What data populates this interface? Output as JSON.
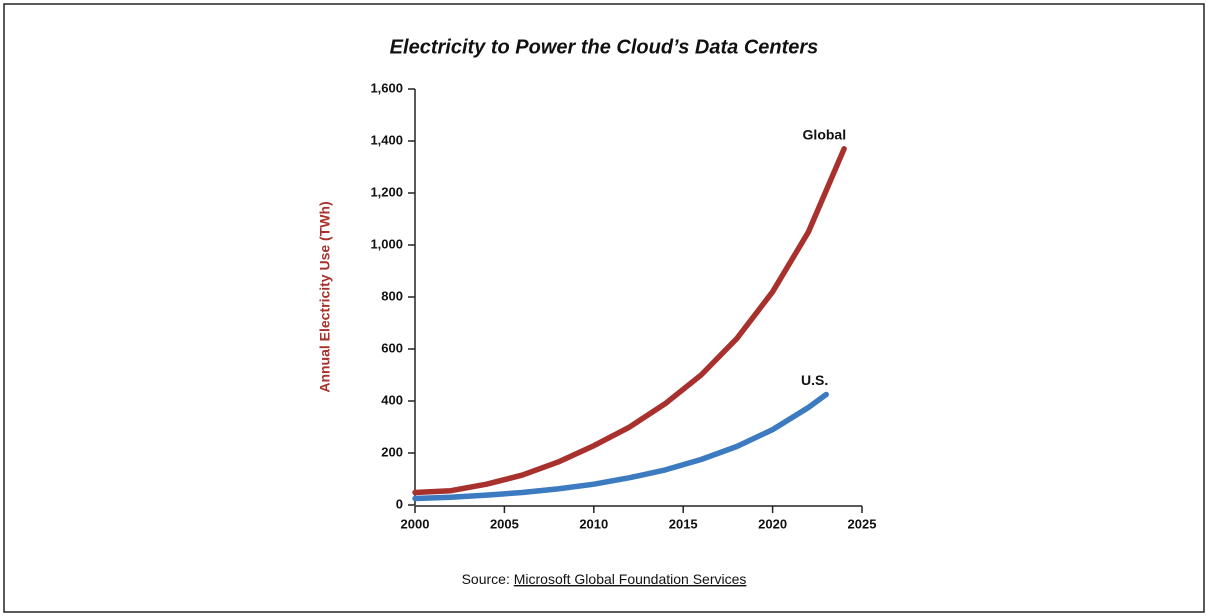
{
  "chart_data": {
    "type": "line",
    "title": "Electricity to Power the Cloud’s Data Centers",
    "y_label": "Annual Electricity Use (TWh)",
    "y_label_color": "#a8312d",
    "source_prefix": "Source:",
    "source_link": "Microsoft Global Foundation Services",
    "series": [
      {
        "name": "Global",
        "color": "#a8312d",
        "x": [
          2000,
          2002,
          2004,
          2006,
          2008,
          2010,
          2012,
          2014,
          2016,
          2018,
          2020,
          2022,
          2024
        ],
        "values": [
          48,
          55,
          80,
          115,
          165,
          228,
          300,
          390,
          500,
          640,
          820,
          1050,
          1370
        ]
      },
      {
        "name": "U.S.",
        "color": "#3c7bbf",
        "x": [
          2000,
          2002,
          2004,
          2006,
          2008,
          2010,
          2012,
          2014,
          2016,
          2018,
          2020,
          2022,
          2023
        ],
        "values": [
          25,
          30,
          38,
          48,
          62,
          80,
          105,
          135,
          175,
          225,
          290,
          375,
          425
        ]
      }
    ],
    "xlim": [
      2000,
      2025
    ],
    "xticks": [
      2000,
      2005,
      2010,
      2015,
      2020,
      2025
    ],
    "ylim": [
      0,
      1600
    ],
    "yticks": [
      0,
      200,
      400,
      600,
      800,
      {
        "value": 1000,
        "label": "1,000"
      },
      {
        "value": 1200,
        "label": "1,200"
      },
      {
        "value": 1400,
        "label": "1,400"
      },
      {
        "value": 1600,
        "label": "1,600"
      }
    ]
  }
}
